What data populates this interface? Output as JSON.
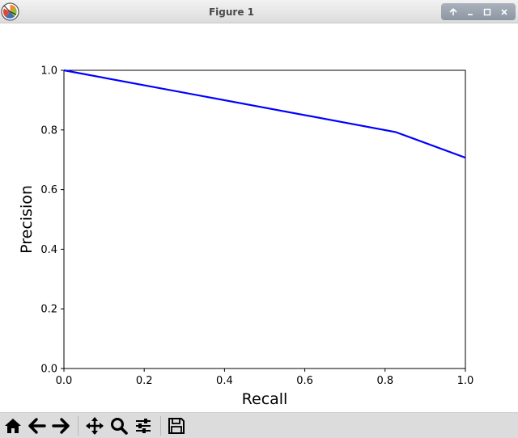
{
  "window": {
    "title": "Figure 1",
    "controls": [
      "up-arrow-icon",
      "minimize-icon",
      "maximize-icon",
      "close-icon"
    ]
  },
  "toolbar": {
    "tools": [
      {
        "name": "home-icon"
      },
      {
        "name": "back-arrow-icon"
      },
      {
        "name": "forward-arrow-icon"
      },
      {
        "name": "pan-move-icon"
      },
      {
        "name": "zoom-magnifier-icon"
      },
      {
        "name": "configure-subplots-icon"
      },
      {
        "name": "save-floppy-icon"
      }
    ]
  },
  "chart_data": {
    "type": "line",
    "title": "",
    "xlabel": "Recall",
    "ylabel": "Precision",
    "xlim": [
      0.0,
      1.0
    ],
    "ylim": [
      0.0,
      1.0
    ],
    "xticks": [
      "0.0",
      "0.2",
      "0.4",
      "0.6",
      "0.8",
      "1.0"
    ],
    "yticks": [
      "0.0",
      "0.2",
      "0.4",
      "0.6",
      "0.8",
      "1.0"
    ],
    "grid": false,
    "legend": "none",
    "series": [
      {
        "color": "#0000ff",
        "x": [
          0.0,
          0.826,
          1.0
        ],
        "y": [
          1.0,
          0.793,
          0.707
        ]
      }
    ]
  }
}
